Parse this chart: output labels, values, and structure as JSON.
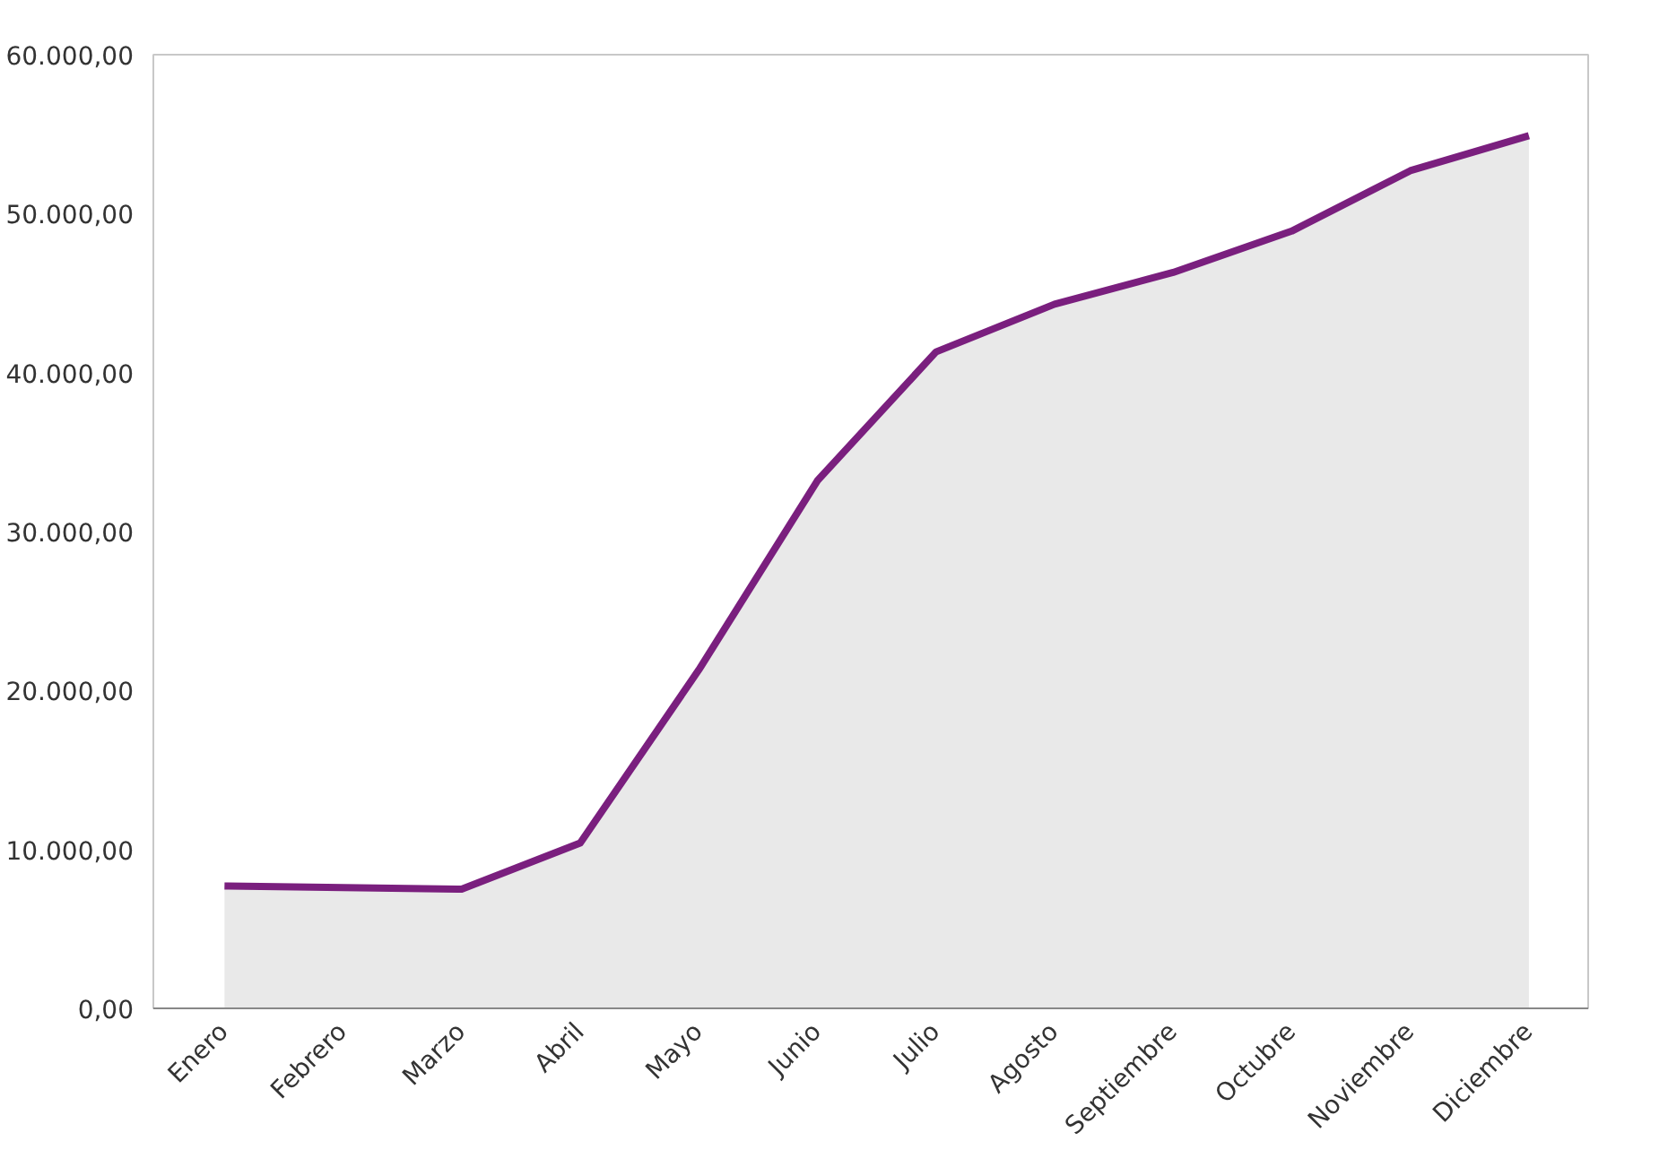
{
  "chart_data": {
    "type": "area",
    "categories": [
      "Enero",
      "Febrero",
      "Marzo",
      "Abril",
      "Mayo",
      "Junio",
      "Julio",
      "Agosto",
      "Septiembre",
      "Octubre",
      "Noviembre",
      "Diciembre"
    ],
    "series": [
      {
        "color": "#7a1f7e",
        "values": [
          7700,
          7600,
          7500,
          10400,
          21300,
          33200,
          41300,
          44300,
          46300,
          48900,
          52700,
          54900
        ]
      }
    ],
    "ylim": [
      0,
      60000
    ],
    "yticks": [
      {
        "value": 0,
        "label": "0,00"
      },
      {
        "value": 10000,
        "label": "10.000,00"
      },
      {
        "value": 20000,
        "label": "20.000,00"
      },
      {
        "value": 30000,
        "label": "30.000,00"
      },
      {
        "value": 40000,
        "label": "40.000,00"
      },
      {
        "value": 50000,
        "label": "50.000,00"
      },
      {
        "value": 60000,
        "label": "60.000,00"
      }
    ],
    "marker": "none",
    "line_style": "solid"
  }
}
